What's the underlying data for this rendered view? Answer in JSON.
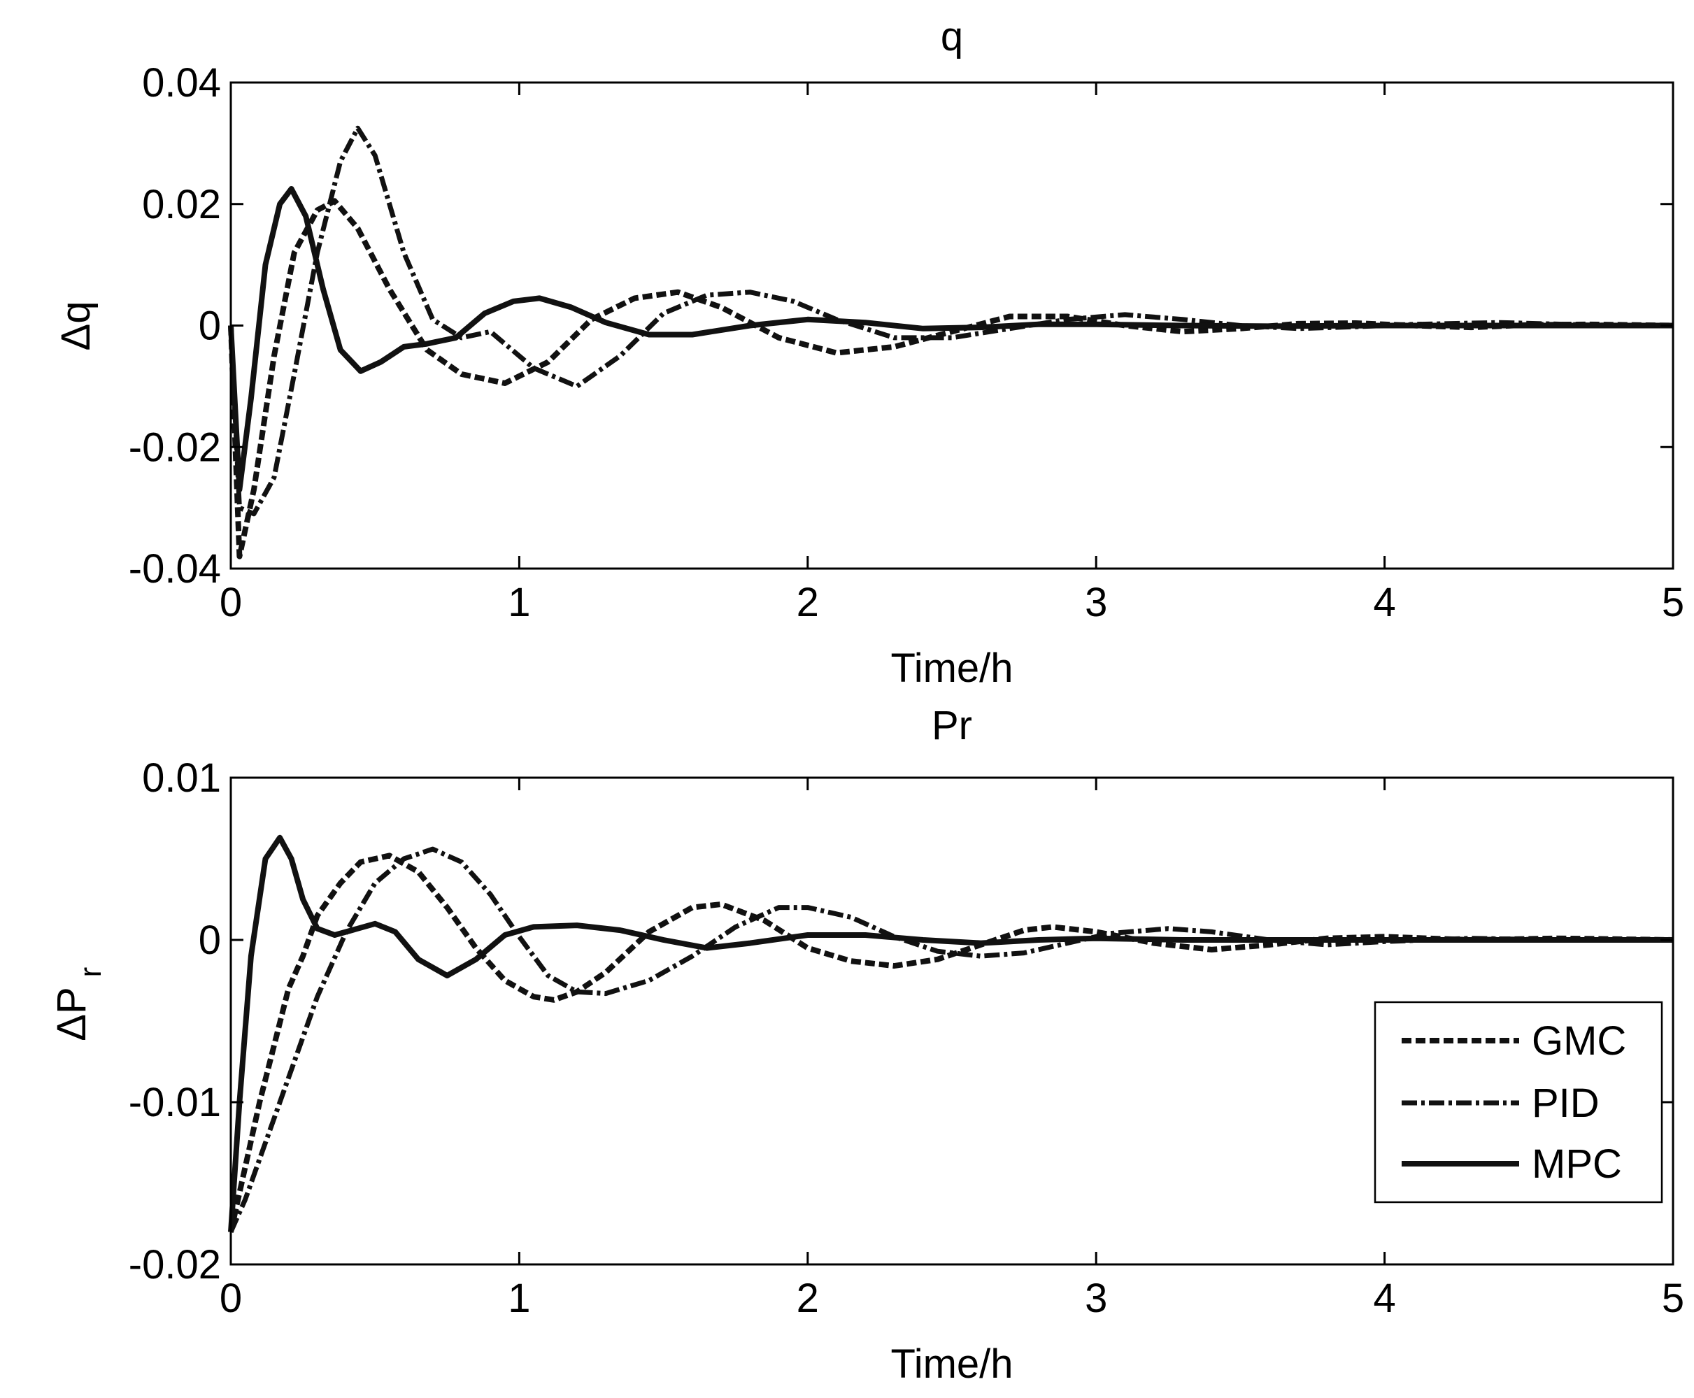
{
  "legend_labels": [
    "GMC",
    "PID",
    "MPC"
  ],
  "chart_data": [
    {
      "type": "line",
      "title": "q",
      "xlabel": "Time/h",
      "ylabel": "Δq",
      "xlim": [
        0,
        5
      ],
      "ylim": [
        -0.04,
        0.04
      ],
      "xticks": [
        0,
        1,
        2,
        3,
        4,
        5
      ],
      "xtick_labels": [
        "0",
        "1",
        "2",
        "3",
        "4",
        "5"
      ],
      "yticks": [
        -0.04,
        -0.02,
        0,
        0.02,
        0.04
      ],
      "ytick_labels": [
        "-0.04",
        "-0.02",
        "0",
        "0.02",
        "0.04"
      ],
      "grid": false,
      "series": [
        {
          "name": "GMC",
          "style": "dashed",
          "x": [
            0,
            0.03,
            0.08,
            0.15,
            0.22,
            0.3,
            0.36,
            0.44,
            0.55,
            0.68,
            0.8,
            0.95,
            1.1,
            1.25,
            1.4,
            1.55,
            1.7,
            1.9,
            2.1,
            2.3,
            2.5,
            2.7,
            2.9,
            3.1,
            3.3,
            3.5,
            3.7,
            3.9,
            4.1,
            4.3,
            4.5,
            4.7,
            5.0
          ],
          "y": [
            0.0,
            -0.038,
            -0.027,
            -0.005,
            0.012,
            0.019,
            0.0205,
            0.016,
            0.006,
            -0.004,
            -0.008,
            -0.0095,
            -0.006,
            0.001,
            0.0045,
            0.0055,
            0.003,
            -0.002,
            -0.0045,
            -0.0035,
            -0.001,
            0.0015,
            0.0015,
            0.0,
            -0.001,
            -0.0005,
            0.0003,
            0.0004,
            0.0,
            -0.0003,
            0.0001,
            0.0002,
            0.0
          ]
        },
        {
          "name": "PID",
          "style": "dashdot",
          "x": [
            0,
            0.03,
            0.08,
            0.15,
            0.22,
            0.3,
            0.38,
            0.44,
            0.5,
            0.6,
            0.7,
            0.8,
            0.9,
            1.05,
            1.2,
            1.35,
            1.5,
            1.65,
            1.8,
            1.95,
            2.1,
            2.3,
            2.5,
            2.7,
            2.9,
            3.1,
            3.3,
            3.5,
            3.7,
            3.9,
            4.1,
            4.4,
            4.7,
            5.0
          ],
          "y": [
            0.0,
            -0.03,
            -0.031,
            -0.025,
            -0.008,
            0.012,
            0.027,
            0.0325,
            0.028,
            0.012,
            0.001,
            -0.002,
            -0.001,
            -0.007,
            -0.01,
            -0.005,
            0.002,
            0.005,
            0.0055,
            0.004,
            0.001,
            -0.002,
            -0.002,
            -0.0005,
            0.001,
            0.0018,
            0.001,
            0.0,
            -0.0005,
            -0.0002,
            0.0002,
            0.0005,
            0.0001,
            0.0
          ]
        },
        {
          "name": "MPC",
          "style": "solid",
          "x": [
            0,
            0.03,
            0.07,
            0.12,
            0.17,
            0.21,
            0.26,
            0.32,
            0.38,
            0.45,
            0.52,
            0.6,
            0.68,
            0.78,
            0.88,
            0.98,
            1.07,
            1.18,
            1.3,
            1.45,
            1.6,
            1.8,
            2.0,
            2.2,
            2.4,
            2.6,
            2.8,
            3.0,
            3.3,
            3.6,
            4.0,
            4.5,
            5.0
          ],
          "y": [
            0.0,
            -0.027,
            -0.012,
            0.01,
            0.02,
            0.0225,
            0.018,
            0.006,
            -0.004,
            -0.0075,
            -0.006,
            -0.0035,
            -0.003,
            -0.002,
            0.002,
            0.004,
            0.0045,
            0.003,
            0.0005,
            -0.0015,
            -0.0015,
            0.0,
            0.001,
            0.0005,
            -0.0005,
            -0.0003,
            0.0002,
            0.0002,
            0.0,
            -0.0001,
            0.0,
            0.0,
            0.0
          ]
        }
      ]
    },
    {
      "type": "line",
      "title": "Pr",
      "xlabel": "Time/h",
      "ylabel": "ΔP",
      "ylabel_subscript": "r",
      "xlim": [
        0,
        5
      ],
      "ylim": [
        -0.02,
        0.01
      ],
      "xticks": [
        0,
        1,
        2,
        3,
        4,
        5
      ],
      "xtick_labels": [
        "0",
        "1",
        "2",
        "3",
        "4",
        "5"
      ],
      "yticks": [
        -0.02,
        -0.01,
        0,
        0.01
      ],
      "ytick_labels": [
        "-0.02",
        "-0.01",
        "0",
        "0.01"
      ],
      "grid": false,
      "legend_position": "lower-right",
      "series": [
        {
          "name": "GMC",
          "style": "dashed",
          "x": [
            0,
            0.05,
            0.1,
            0.15,
            0.2,
            0.25,
            0.3,
            0.38,
            0.45,
            0.55,
            0.65,
            0.75,
            0.85,
            0.95,
            1.05,
            1.12,
            1.2,
            1.3,
            1.45,
            1.6,
            1.7,
            1.85,
            2.0,
            2.15,
            2.3,
            2.45,
            2.6,
            2.75,
            2.85,
            3.0,
            3.2,
            3.4,
            3.6,
            3.8,
            4.0,
            4.3,
            4.6,
            5.0
          ],
          "y": [
            -0.018,
            -0.014,
            -0.01,
            -0.0065,
            -0.003,
            -0.001,
            0.0015,
            0.0035,
            0.0048,
            0.0052,
            0.0042,
            0.002,
            -0.0005,
            -0.0025,
            -0.0035,
            -0.0037,
            -0.0032,
            -0.002,
            0.0005,
            0.002,
            0.0022,
            0.0012,
            -0.0005,
            -0.0013,
            -0.0016,
            -0.0012,
            -0.0003,
            0.0006,
            0.0008,
            0.0005,
            -0.0002,
            -0.0006,
            -0.0003,
            0.0001,
            0.0002,
            0.0,
            0.0001,
            0.0
          ]
        },
        {
          "name": "PID",
          "style": "dashdot",
          "x": [
            0,
            0.05,
            0.1,
            0.15,
            0.2,
            0.3,
            0.4,
            0.5,
            0.6,
            0.7,
            0.8,
            0.9,
            1.0,
            1.1,
            1.2,
            1.3,
            1.45,
            1.6,
            1.75,
            1.9,
            2.0,
            2.15,
            2.3,
            2.45,
            2.6,
            2.75,
            2.9,
            3.05,
            3.25,
            3.4,
            3.6,
            3.8,
            4.0,
            4.3,
            4.6,
            5.0
          ],
          "y": [
            -0.018,
            -0.016,
            -0.0135,
            -0.011,
            -0.0085,
            -0.0035,
            0.0005,
            0.0035,
            0.005,
            0.0056,
            0.0048,
            0.0028,
            0.0002,
            -0.0022,
            -0.0032,
            -0.0033,
            -0.0025,
            -0.001,
            0.0008,
            0.002,
            0.002,
            0.0014,
            0.0002,
            -0.0007,
            -0.001,
            -0.0008,
            -0.0002,
            0.0004,
            0.0007,
            0.0005,
            0.0,
            -0.0003,
            -0.0001,
            0.0001,
            0.0,
            0.0
          ]
        },
        {
          "name": "MPC",
          "style": "solid",
          "x": [
            0,
            0.03,
            0.07,
            0.12,
            0.17,
            0.21,
            0.25,
            0.3,
            0.36,
            0.42,
            0.5,
            0.57,
            0.65,
            0.75,
            0.85,
            0.95,
            1.05,
            1.2,
            1.35,
            1.5,
            1.65,
            1.8,
            2.0,
            2.2,
            2.4,
            2.6,
            2.8,
            3.0,
            3.3,
            3.6,
            4.0,
            4.5,
            5.0
          ],
          "y": [
            -0.018,
            -0.01,
            -0.001,
            0.005,
            0.0063,
            0.005,
            0.0025,
            0.0007,
            0.0003,
            0.0006,
            0.001,
            0.0005,
            -0.0012,
            -0.0022,
            -0.0012,
            0.0003,
            0.0008,
            0.0009,
            0.0006,
            0.0,
            -0.0005,
            -0.0002,
            0.0003,
            0.0003,
            0.0,
            -0.0002,
            0.0,
            0.0001,
            0.0,
            0.0,
            0.0,
            0.0,
            0.0
          ]
        }
      ]
    }
  ]
}
